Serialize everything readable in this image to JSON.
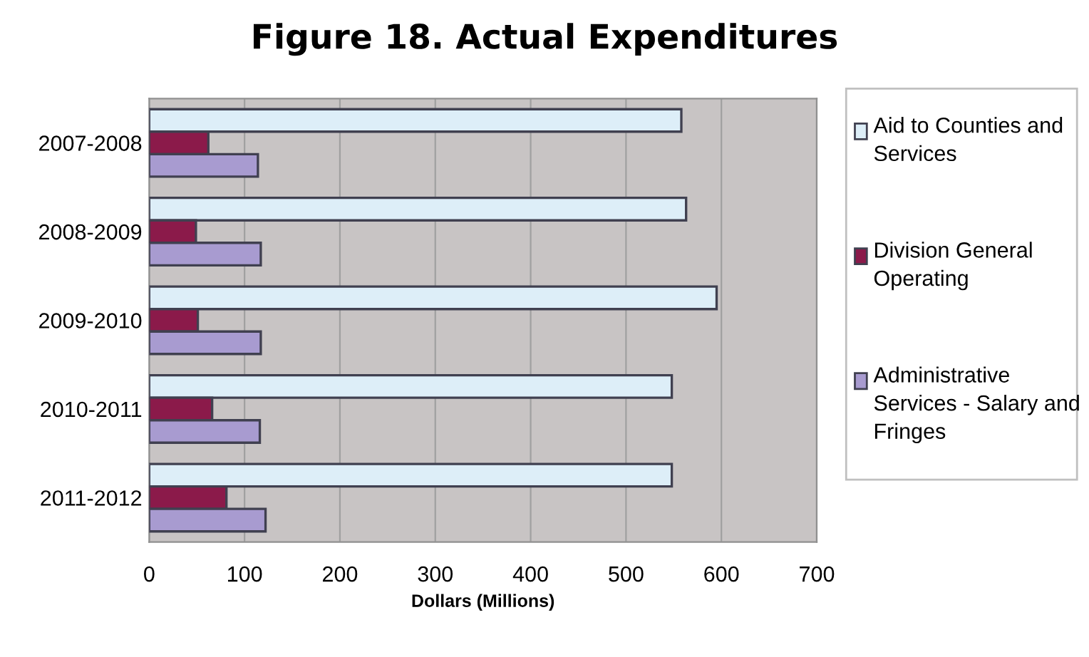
{
  "chart_data": {
    "type": "bar",
    "orientation": "horizontal",
    "title": "Figure 18. Actual Expenditures",
    "xlabel": "Dollars (Millions)",
    "categories": [
      "2007-2008",
      "2008-2009",
      "2009-2010",
      "2010-2011",
      "2011-2012"
    ],
    "series": [
      {
        "name": "Aid to Counties and Services",
        "color": "#ddeef8",
        "values": [
          558,
          563,
          595,
          548,
          548
        ]
      },
      {
        "name": "Division General Operating",
        "color": "#8b1a4a",
        "values": [
          62,
          49,
          51,
          66,
          81
        ]
      },
      {
        "name": "Administrative Services - Salary and Fringes",
        "color": "#a89bd0",
        "values": [
          114,
          117,
          117,
          116,
          122
        ]
      }
    ],
    "xlim": [
      0,
      700
    ],
    "xticks": [
      0,
      100,
      200,
      300,
      400,
      500,
      600,
      700
    ],
    "grid": "x",
    "legend": "right"
  }
}
